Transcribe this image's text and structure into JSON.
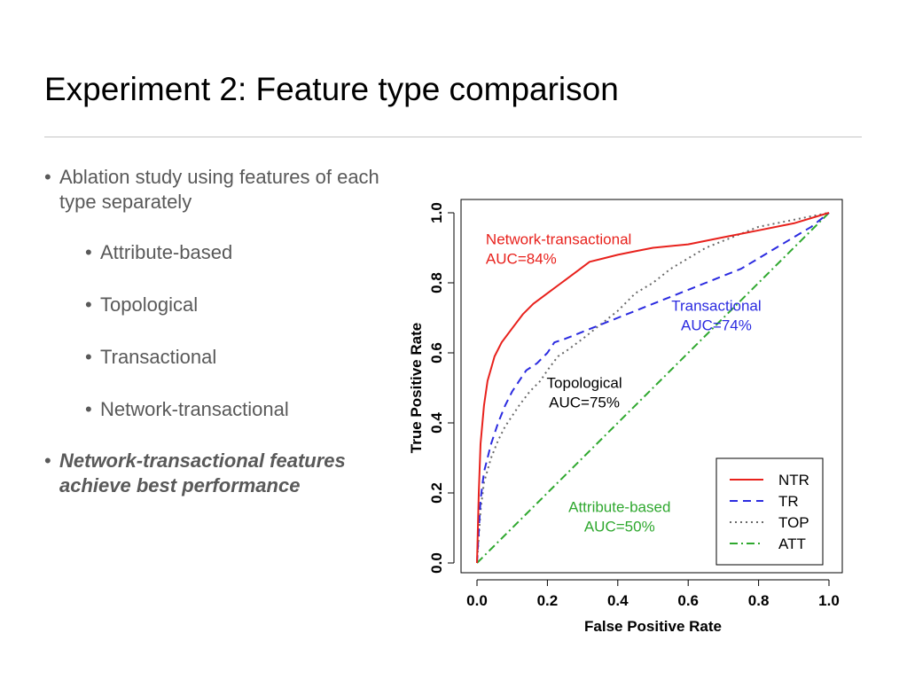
{
  "slide": {
    "title": "Experiment 2: Feature type comparison",
    "bullets": [
      "Ablation study using features of each type separately",
      "Network-transactional features achieve best performance"
    ],
    "sub_bullets": [
      "Attribute-based",
      "Topological",
      "Transactional",
      "Network-transactional"
    ],
    "bullet_symbol": "•"
  },
  "chart_data": {
    "type": "line",
    "xlabel": "False Positive Rate",
    "ylabel": "True Positive Rate",
    "xlim": [
      0,
      1
    ],
    "ylim": [
      0,
      1
    ],
    "xticks": [
      "0.0",
      "0.2",
      "0.4",
      "0.6",
      "0.8",
      "1.0"
    ],
    "yticks": [
      "0.0",
      "0.2",
      "0.4",
      "0.6",
      "0.8",
      "1.0"
    ],
    "grid": false,
    "legend_position": "bottom-right",
    "series": [
      {
        "name": "NTR",
        "color": "#e8211c",
        "style": "solid",
        "x": [
          0,
          0.005,
          0.01,
          0.02,
          0.03,
          0.05,
          0.07,
          0.1,
          0.13,
          0.16,
          0.2,
          0.24,
          0.28,
          0.32,
          0.36,
          0.4,
          0.45,
          0.5,
          0.6,
          0.7,
          0.8,
          0.9,
          1.0
        ],
        "y": [
          0,
          0.2,
          0.34,
          0.45,
          0.52,
          0.59,
          0.63,
          0.67,
          0.71,
          0.74,
          0.77,
          0.8,
          0.83,
          0.86,
          0.87,
          0.88,
          0.89,
          0.9,
          0.91,
          0.93,
          0.95,
          0.97,
          1.0
        ]
      },
      {
        "name": "TR",
        "color": "#2b2be0",
        "style": "dashed",
        "x": [
          0,
          0.01,
          0.02,
          0.04,
          0.06,
          0.08,
          0.1,
          0.12,
          0.14,
          0.17,
          0.2,
          0.22,
          0.25,
          0.3,
          0.35,
          0.4,
          0.45,
          0.5,
          0.55,
          0.6,
          0.65,
          0.7,
          0.75,
          0.8,
          0.85,
          0.9,
          0.95,
          1.0
        ],
        "y": [
          0,
          0.18,
          0.26,
          0.34,
          0.4,
          0.45,
          0.49,
          0.52,
          0.55,
          0.57,
          0.6,
          0.63,
          0.64,
          0.66,
          0.68,
          0.7,
          0.72,
          0.74,
          0.76,
          0.78,
          0.8,
          0.82,
          0.84,
          0.87,
          0.9,
          0.93,
          0.96,
          1.0
        ]
      },
      {
        "name": "TOP",
        "color": "#6a6a6a",
        "style": "dotted",
        "x": [
          0,
          0.01,
          0.02,
          0.04,
          0.06,
          0.08,
          0.1,
          0.12,
          0.15,
          0.18,
          0.2,
          0.23,
          0.26,
          0.3,
          0.35,
          0.4,
          0.45,
          0.5,
          0.55,
          0.6,
          0.65,
          0.7,
          0.75,
          0.8,
          0.85,
          0.9,
          0.95,
          1.0
        ],
        "y": [
          0,
          0.15,
          0.23,
          0.3,
          0.35,
          0.39,
          0.42,
          0.45,
          0.49,
          0.52,
          0.55,
          0.59,
          0.61,
          0.64,
          0.68,
          0.72,
          0.77,
          0.8,
          0.84,
          0.87,
          0.9,
          0.92,
          0.94,
          0.96,
          0.97,
          0.98,
          0.99,
          1.0
        ]
      },
      {
        "name": "ATT",
        "color": "#2fa82f",
        "style": "dotdash",
        "x": [
          0,
          1
        ],
        "y": [
          0,
          1
        ]
      }
    ],
    "annotations": [
      {
        "lines": [
          "Network-transactional",
          "AUC=84%"
        ],
        "color": "#e8211c",
        "align": "left",
        "x": 0.025,
        "y": 0.91
      },
      {
        "lines": [
          "Transactional",
          "AUC=74%"
        ],
        "color": "#2b2be0",
        "align": "center",
        "x": 0.68,
        "y": 0.72
      },
      {
        "lines": [
          "Topological",
          "AUC=75%"
        ],
        "color": "#000000",
        "align": "center",
        "x": 0.305,
        "y": 0.5
      },
      {
        "lines": [
          "Attribute-based",
          "AUC=50%"
        ],
        "color": "#2fa82f",
        "align": "center",
        "x": 0.405,
        "y": 0.145
      }
    ]
  }
}
